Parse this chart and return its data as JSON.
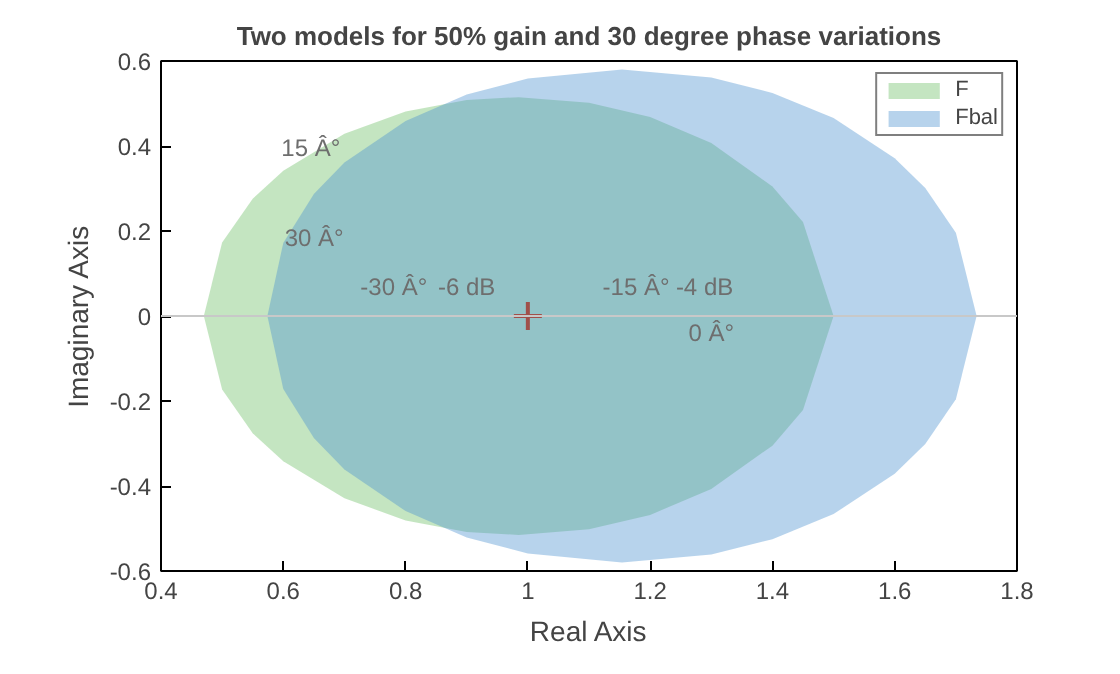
{
  "chart_data": {
    "type": "area",
    "title": "Two models for 50% gain and 30 degree phase variations",
    "xlabel": "Real Axis",
    "ylabel": "Imaginary Axis",
    "xlim": [
      0.4,
      1.8
    ],
    "ylim": [
      -0.6,
      0.6
    ],
    "xticks": [
      0.4,
      0.6,
      0.8,
      1,
      1.2,
      1.4,
      1.6,
      1.8
    ],
    "yticks": [
      -0.6,
      -0.4,
      -0.2,
      0,
      0.2,
      0.4,
      0.6
    ],
    "series": [
      {
        "name": "F",
        "color": "#6bbf63",
        "x": [
          0.47,
          0.5,
          0.55,
          0.6,
          0.7,
          0.8,
          0.9,
          0.985,
          1.1,
          1.2,
          1.3,
          1.4,
          1.45,
          1.5
        ],
        "values": [
          0,
          0.173,
          0.276,
          0.342,
          0.429,
          0.481,
          0.508,
          0.515,
          0.502,
          0.468,
          0.407,
          0.305,
          0.221,
          0
        ]
      },
      {
        "color": "#6bbf63",
        "x": [
          0.47,
          0.5,
          0.55,
          0.6,
          0.7,
          0.8,
          0.9,
          0.985,
          1.1,
          1.2,
          1.3,
          1.4,
          1.45,
          1.5
        ],
        "values": [
          0,
          -0.173,
          -0.276,
          -0.342,
          -0.429,
          -0.481,
          -0.508,
          -0.515,
          -0.502,
          -0.468,
          -0.407,
          -0.305,
          -0.221,
          0
        ]
      },
      {
        "name": "Fbal",
        "color": "#4a90d0",
        "x": [
          0.574,
          0.6,
          0.65,
          0.7,
          0.8,
          0.9,
          1.0,
          1.154,
          1.3,
          1.4,
          1.5,
          1.6,
          1.65,
          1.7,
          1.734
        ],
        "values": [
          0,
          0.172,
          0.287,
          0.361,
          0.459,
          0.521,
          0.559,
          0.58,
          0.561,
          0.525,
          0.466,
          0.371,
          0.301,
          0.196,
          0
        ]
      },
      {
        "color": "#4a90d0",
        "x": [
          0.574,
          0.6,
          0.65,
          0.7,
          0.8,
          0.9,
          1.0,
          1.154,
          1.3,
          1.4,
          1.5,
          1.6,
          1.65,
          1.7,
          1.734
        ],
        "values": [
          0,
          -0.172,
          -0.287,
          -0.361,
          -0.459,
          -0.521,
          -0.559,
          -0.58,
          -0.561,
          -0.525,
          -0.466,
          -0.371,
          -0.301,
          -0.196,
          0
        ]
      },
      {
        "type": "scatter",
        "marker": "cross",
        "color": "#a0504a",
        "x": [
          1
        ],
        "values": [
          0
        ]
      }
    ],
    "ref_lines": [
      {
        "axis": "y",
        "value": 0,
        "color": "#c8c8c8"
      }
    ],
    "annotations": [
      "15 Â°",
      "30 Â°",
      "-30 Â°",
      "-6 dB",
      "-15 Â°",
      "-4 dB",
      "0 Â°"
    ],
    "legend": "top right"
  }
}
